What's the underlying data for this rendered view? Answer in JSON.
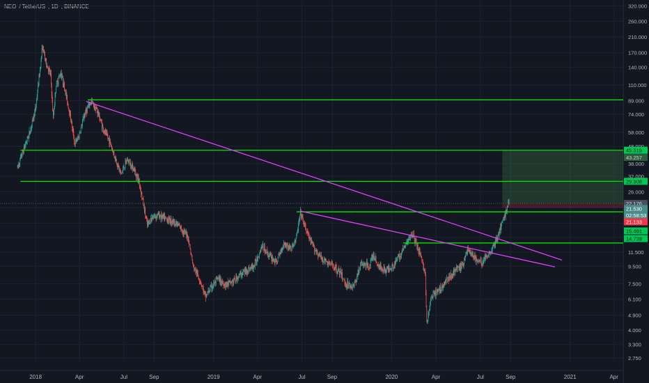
{
  "header": {
    "symbol": "NEO",
    "quote": "TetherUS",
    "interval": "1D",
    "exchange": "BINANCE"
  },
  "colors": {
    "background": "#131722",
    "grid": "#1e2230",
    "axis_text": "#b2b5be",
    "candle_up": "#26a69a",
    "candle_down": "#ef5350",
    "level_line": "#00e600",
    "trend_line": "#e040fb",
    "zone_fill": "#4caf50",
    "last_price_bg": "#4a8c8a"
  },
  "chart_data": {
    "type": "candlestick",
    "y_scale": "log",
    "ylim": [
      2.6,
      340
    ],
    "xlim": [
      "2017-10-20",
      "2021-04-20"
    ],
    "grid": true,
    "y_ticks": [
      "320.000",
      "260.000",
      "210.000",
      "170.000",
      "140.000",
      "110.000",
      "89.000",
      "74.000",
      "58.000",
      "48.000",
      "38.000",
      "32.000",
      "26.000",
      "21.000",
      "17.000",
      "14.000",
      "11.500",
      "9.500",
      "7.500",
      "6.100",
      "4.900",
      "4.000",
      "3.300",
      "2.750"
    ],
    "x_ticks": [
      {
        "label": "2018",
        "date": "2018-01-01"
      },
      {
        "label": "Apr",
        "date": "2018-04-01"
      },
      {
        "label": "Jul",
        "date": "2018-07-01"
      },
      {
        "label": "Sep",
        "date": "2018-09-01"
      },
      {
        "label": "2019",
        "date": "2019-01-01"
      },
      {
        "label": "Apr",
        "date": "2019-04-01"
      },
      {
        "label": "Jul",
        "date": "2019-07-01"
      },
      {
        "label": "Sep",
        "date": "2019-09-01"
      },
      {
        "label": "2020",
        "date": "2020-01-01"
      },
      {
        "label": "Apr",
        "date": "2020-04-01"
      },
      {
        "label": "Jul",
        "date": "2020-07-01"
      },
      {
        "label": "Sep",
        "date": "2020-09-01"
      },
      {
        "label": "2021",
        "date": "2021-01-01"
      },
      {
        "label": "Apr",
        "date": "2021-04-01"
      }
    ],
    "price_path": [
      [
        "2017-11-25",
        36
      ],
      [
        "2017-12-05",
        44
      ],
      [
        "2017-12-20",
        58
      ],
      [
        "2018-01-01",
        80
      ],
      [
        "2018-01-08",
        120
      ],
      [
        "2018-01-15",
        185
      ],
      [
        "2018-01-22",
        150
      ],
      [
        "2018-02-01",
        125
      ],
      [
        "2018-02-06",
        70
      ],
      [
        "2018-02-12",
        110
      ],
      [
        "2018-02-22",
        130
      ],
      [
        "2018-03-05",
        95
      ],
      [
        "2018-03-15",
        68
      ],
      [
        "2018-03-22",
        50
      ],
      [
        "2018-03-30",
        54
      ],
      [
        "2018-04-12",
        75
      ],
      [
        "2018-04-25",
        88
      ],
      [
        "2018-05-08",
        77
      ],
      [
        "2018-05-20",
        60
      ],
      [
        "2018-06-01",
        52
      ],
      [
        "2018-06-12",
        42
      ],
      [
        "2018-06-25",
        33
      ],
      [
        "2018-07-08",
        40
      ],
      [
        "2018-07-20",
        36
      ],
      [
        "2018-08-01",
        30
      ],
      [
        "2018-08-10",
        22
      ],
      [
        "2018-08-18",
        16.5
      ],
      [
        "2018-08-28",
        18.5
      ],
      [
        "2018-09-10",
        19
      ],
      [
        "2018-09-25",
        18
      ],
      [
        "2018-10-10",
        17.5
      ],
      [
        "2018-10-25",
        16
      ],
      [
        "2018-11-10",
        14
      ],
      [
        "2018-11-20",
        9.5
      ],
      [
        "2018-12-05",
        7.8
      ],
      [
        "2018-12-15",
        6.3
      ],
      [
        "2018-12-25",
        7
      ],
      [
        "2019-01-10",
        8
      ],
      [
        "2019-01-25",
        7.4
      ],
      [
        "2019-02-10",
        7.7
      ],
      [
        "2019-02-25",
        8.5
      ],
      [
        "2019-03-10",
        9
      ],
      [
        "2019-03-25",
        9.5
      ],
      [
        "2019-04-10",
        12.5
      ],
      [
        "2019-04-25",
        11
      ],
      [
        "2019-05-10",
        10
      ],
      [
        "2019-05-25",
        13
      ],
      [
        "2019-06-10",
        12
      ],
      [
        "2019-06-20",
        14
      ],
      [
        "2019-06-28",
        19.5
      ],
      [
        "2019-07-08",
        16
      ],
      [
        "2019-07-20",
        13
      ],
      [
        "2019-08-05",
        11
      ],
      [
        "2019-08-20",
        10
      ],
      [
        "2019-09-05",
        9.5
      ],
      [
        "2019-09-20",
        8.5
      ],
      [
        "2019-09-28",
        7.5
      ],
      [
        "2019-10-15",
        7.2
      ],
      [
        "2019-10-30",
        9.8
      ],
      [
        "2019-11-15",
        9.5
      ],
      [
        "2019-11-25",
        11
      ],
      [
        "2019-12-05",
        9.5
      ],
      [
        "2019-12-20",
        9
      ],
      [
        "2020-01-05",
        9.6
      ],
      [
        "2020-01-18",
        11
      ],
      [
        "2020-02-01",
        13
      ],
      [
        "2020-02-12",
        15
      ],
      [
        "2020-02-20",
        13
      ],
      [
        "2020-03-01",
        11
      ],
      [
        "2020-03-10",
        8.5
      ],
      [
        "2020-03-13",
        4.3
      ],
      [
        "2020-03-22",
        6.2
      ],
      [
        "2020-04-10",
        7
      ],
      [
        "2020-04-25",
        8
      ],
      [
        "2020-05-10",
        9
      ],
      [
        "2020-05-25",
        9.5
      ],
      [
        "2020-06-05",
        12
      ],
      [
        "2020-06-15",
        11
      ],
      [
        "2020-06-25",
        10.2
      ],
      [
        "2020-07-05",
        10
      ],
      [
        "2020-07-15",
        11
      ],
      [
        "2020-07-25",
        12
      ],
      [
        "2020-08-05",
        14
      ],
      [
        "2020-08-15",
        17
      ],
      [
        "2020-08-25",
        21
      ],
      [
        "2020-08-29",
        22.8
      ]
    ],
    "horizontal_levels": [
      {
        "price": 89.936,
        "from": "2018-04-18",
        "label": "89.936"
      },
      {
        "price": 45.519,
        "from": "2017-12-01",
        "label": "45.519"
      },
      {
        "price": 29.908,
        "from": "2017-12-01",
        "label": "29.908"
      },
      {
        "price": 19.8,
        "from": "2019-06-20"
      },
      {
        "price": 13.0,
        "from": "2020-01-25"
      }
    ],
    "trend_lines": [
      {
        "from": [
          "2018-04-15",
          88
        ],
        "to": [
          "2020-08-05",
          13.8
        ],
        "extend_to": "2020-12-15"
      },
      {
        "from": [
          "2019-06-28",
          20
        ],
        "to": [
          "2020-03-01",
          14
        ],
        "extend_to": "2020-12-01"
      }
    ],
    "position_zone": {
      "start": "2020-08-15",
      "end": "2021-04-20",
      "entry": 22.2,
      "target": 45.519,
      "stop": 20.9
    },
    "price_labels": [
      {
        "text": "45.519",
        "price": 45.519,
        "color": "#00c853",
        "text_color": "#131722"
      },
      {
        "text": "43.257",
        "price": 41.3,
        "color": "#2e5d3a",
        "text_color": "#d1d4dc"
      },
      {
        "text": "29.908",
        "price": 29.908,
        "color": "#00c853",
        "text_color": "#131722"
      },
      {
        "text": "22.176",
        "price": 22.176,
        "color": "#4a4f5c",
        "text_color": "#d1d4dc"
      },
      {
        "text": "21.530",
        "price": 20.7,
        "color": "#4a8c8a",
        "text_color": "#ffffff"
      },
      {
        "text": "02:58:53",
        "price": 18.9,
        "color": "#4a8c8a",
        "text_color": "#ffffff"
      },
      {
        "text": "21.133",
        "price": 17.3,
        "color": "#f23645",
        "text_color": "#ffffff"
      },
      {
        "text": "15.461",
        "price": 15.3,
        "color": "#00c853",
        "text_color": "#131722"
      },
      {
        "text": "14.739",
        "price": 13.8,
        "color": "#00c853",
        "text_color": "#131722"
      }
    ]
  }
}
